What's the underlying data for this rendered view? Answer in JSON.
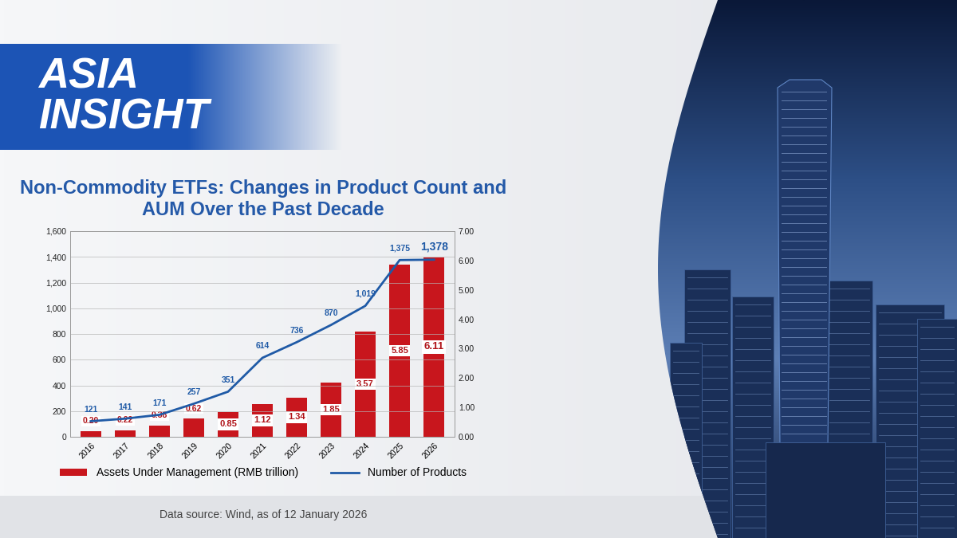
{
  "banner": "ASIA INSIGHT",
  "source": "Data source: Wind, as of 12 January 2026",
  "chart_data": {
    "type": "bar",
    "title": "Non-Commodity ETFs: Changes in Product Count and AUM Over the Past Decade",
    "categories": [
      "2016",
      "2017",
      "2018",
      "2019",
      "2020",
      "2021",
      "2022",
      "2023",
      "2024",
      "2025",
      "2026"
    ],
    "series": [
      {
        "name": "Assets Under Management (RMB trillion)",
        "type": "bar",
        "color": "#c8161d",
        "axis": "y2",
        "values": [
          0.2,
          0.22,
          0.38,
          0.62,
          0.85,
          1.12,
          1.34,
          1.85,
          3.57,
          5.85,
          6.11
        ],
        "value_labels": [
          "0.20",
          "0.22",
          "0.38",
          "0.62",
          "0.85",
          "1.12",
          "1.34",
          "1.85",
          "3.57",
          "5.85",
          "6.11"
        ]
      },
      {
        "name": "Number of Products",
        "type": "line",
        "color": "#1f5aa6",
        "values": [
          121,
          141,
          171,
          257,
          351,
          614,
          736,
          870,
          1019,
          1375,
          1378
        ],
        "value_labels": [
          "121",
          "141",
          "171",
          "257",
          "351",
          "614",
          "736",
          "870",
          "1,019",
          "1,375",
          "1,378"
        ]
      }
    ],
    "ylim": [
      0,
      1600
    ],
    "yticks": [
      0,
      200,
      400,
      600,
      800,
      {
        "value": 1000,
        "label": "1,000"
      },
      {
        "value": 1200,
        "label": "1,200"
      },
      {
        "value": 1400,
        "label": "1,400"
      },
      {
        "value": 1600,
        "label": "1,600"
      }
    ],
    "y2lim": [
      0,
      7
    ],
    "y2ticks": [
      {
        "value": 0,
        "label": "0.00"
      },
      {
        "value": 1,
        "label": "1.00"
      },
      {
        "value": 2,
        "label": "2.00"
      },
      {
        "value": 3,
        "label": "3.00"
      },
      {
        "value": 4,
        "label": "4.00"
      },
      {
        "value": 5,
        "label": "5.00"
      },
      {
        "value": 6,
        "label": "6.00"
      },
      {
        "value": 7,
        "label": "7.00"
      }
    ],
    "grid": true,
    "legend": "lower center",
    "data_labels": true
  }
}
